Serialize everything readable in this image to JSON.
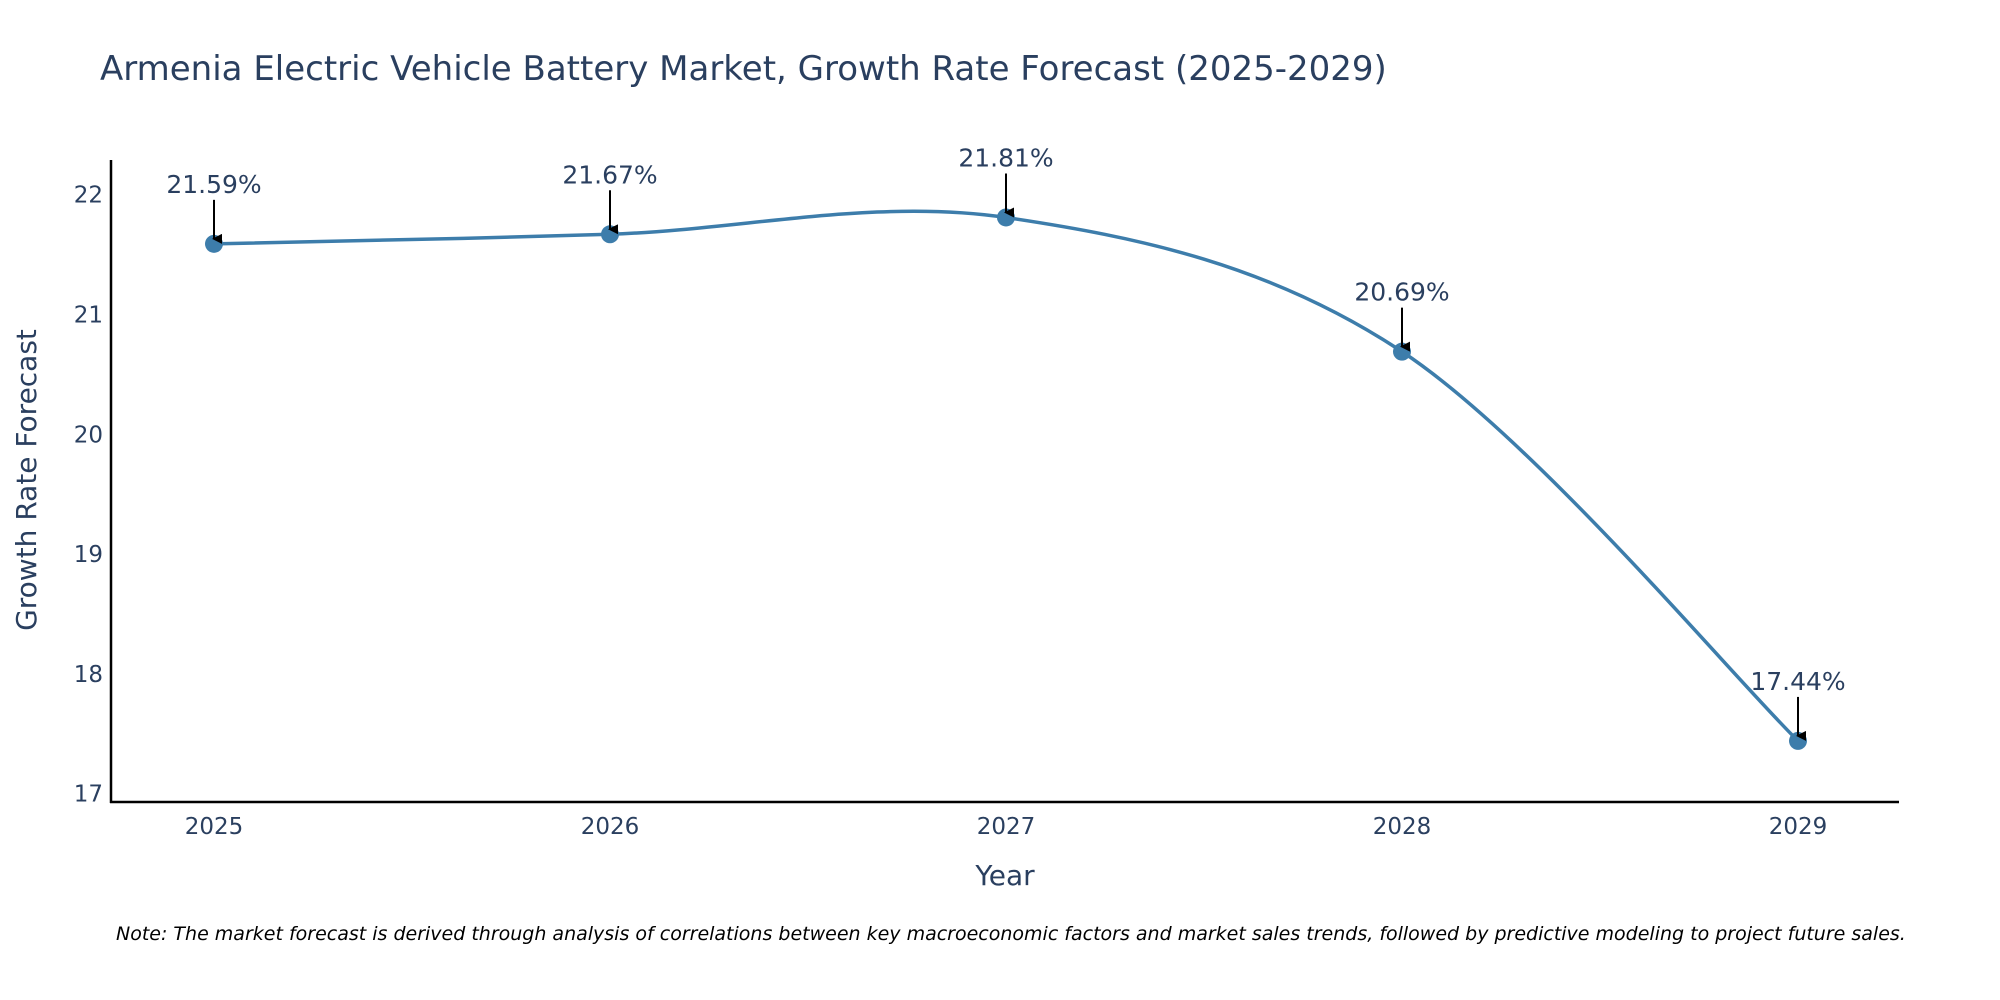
{
  "chart_data": {
    "type": "line",
    "title": "Armenia Electric Vehicle Battery Market, Growth Rate Forecast (2025-2029)",
    "xlabel": "Year",
    "ylabel": "Growth Rate Forecast",
    "categories": [
      "2025",
      "2026",
      "2027",
      "2028",
      "2029"
    ],
    "series": [
      {
        "name": "Growth Rate Forecast",
        "values": [
          21.59,
          21.67,
          21.81,
          20.69,
          17.44
        ],
        "labels": [
          "21.59%",
          "21.67%",
          "21.81%",
          "20.69%",
          "17.44%"
        ]
      }
    ],
    "yticks": [
      "17",
      "18",
      "19",
      "20",
      "21",
      "22"
    ],
    "ylim": [
      16.93,
      22.29
    ],
    "grid": false,
    "legend": "none",
    "note": "Note: The market forecast is derived through analysis of correlations between key macroeconomic factors and market sales trends, followed by predictive modeling to project future sales."
  },
  "colors": {
    "line": "#3d7dab",
    "marker": "#3d7dab",
    "text": "#2a3f5f",
    "axis": "#000000"
  }
}
